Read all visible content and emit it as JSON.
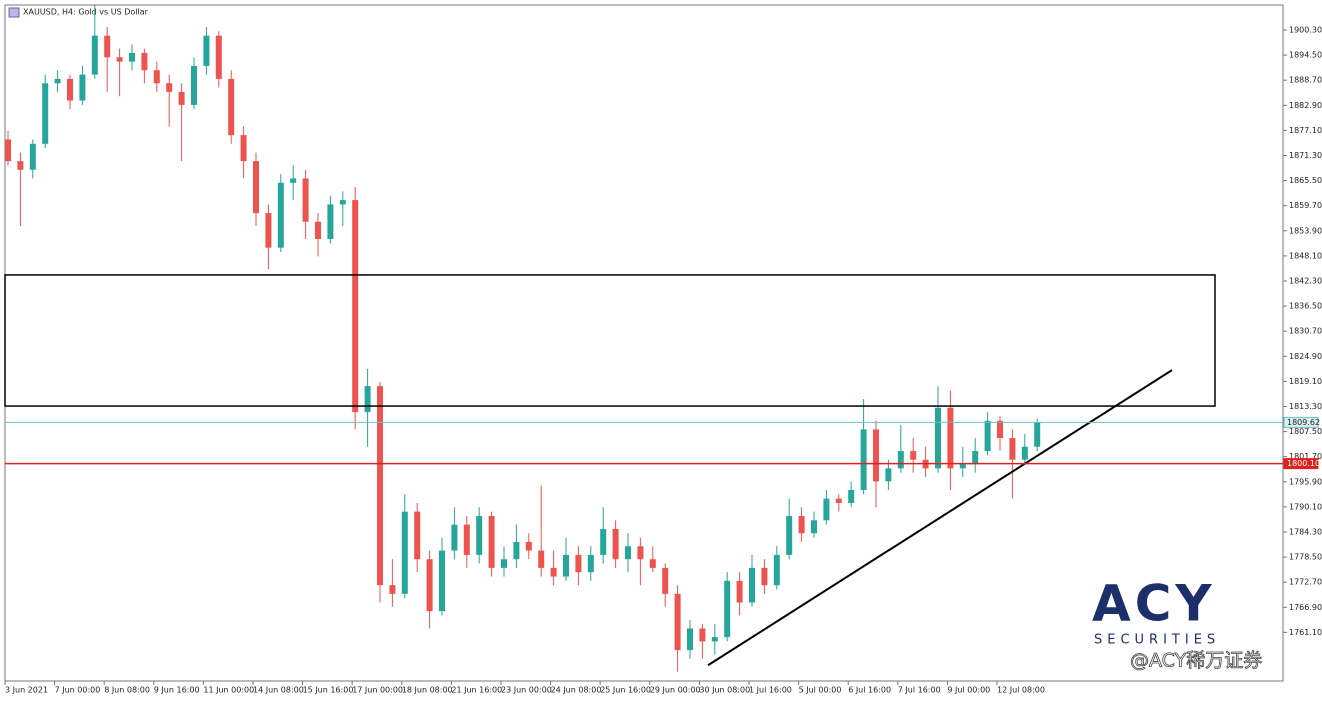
{
  "chart_data": {
    "type": "candlestick",
    "title": "XAUUSD, H4:  Gold vs US Dollar",
    "up_color": "#26a69a",
    "down_color": "#ef5350",
    "ylim": [
      1749.86,
      1906.08
    ],
    "yticks": [
      {
        "value": 1900.3,
        "label": "1900.30"
      },
      {
        "value": 1894.5,
        "label": "1894.50"
      },
      {
        "value": 1888.7,
        "label": "1888.70"
      },
      {
        "value": 1882.9,
        "label": "1882.90"
      },
      {
        "value": 1877.1,
        "label": "1877.10"
      },
      {
        "value": 1871.3,
        "label": "1871.30"
      },
      {
        "value": 1865.5,
        "label": "1865.50"
      },
      {
        "value": 1859.7,
        "label": "1859.70"
      },
      {
        "value": 1853.9,
        "label": "1853.90"
      },
      {
        "value": 1848.1,
        "label": "1848.10"
      },
      {
        "value": 1842.3,
        "label": "1842.30"
      },
      {
        "value": 1836.5,
        "label": "1836.50"
      },
      {
        "value": 1830.7,
        "label": "1830.70"
      },
      {
        "value": 1824.9,
        "label": "1824.90"
      },
      {
        "value": 1819.1,
        "label": "1819.10"
      },
      {
        "value": 1813.3,
        "label": "1813.30"
      },
      {
        "value": 1807.5,
        "label": "1807.50"
      },
      {
        "value": 1801.7,
        "label": "1801.70"
      },
      {
        "value": 1795.9,
        "label": "1795.90"
      },
      {
        "value": 1790.1,
        "label": "1790.10"
      },
      {
        "value": 1784.3,
        "label": "1784.30"
      },
      {
        "value": 1778.5,
        "label": "1778.50"
      },
      {
        "value": 1772.7,
        "label": "1772.70"
      },
      {
        "value": 1766.9,
        "label": "1766.90"
      },
      {
        "value": 1761.1,
        "label": "1761.10"
      }
    ],
    "xticks": [
      {
        "value": 0,
        "label": "3 Jun 2021"
      },
      {
        "value": 4,
        "label": "7 Jun 00:00"
      },
      {
        "value": 8,
        "label": "8 Jun 08:00"
      },
      {
        "value": 12,
        "label": "9 Jun 16:00"
      },
      {
        "value": 16,
        "label": "11 Jun 00:00"
      },
      {
        "value": 20,
        "label": "14 Jun 08:00"
      },
      {
        "value": 24,
        "label": "15 Jun 16:00"
      },
      {
        "value": 28,
        "label": "17 Jun 00:00"
      },
      {
        "value": 32,
        "label": "18 Jun 08:00"
      },
      {
        "value": 36,
        "label": "21 Jun 16:00"
      },
      {
        "value": 40,
        "label": "23 Jun 00:00"
      },
      {
        "value": 44,
        "label": "24 Jun 08:00"
      },
      {
        "value": 48,
        "label": "25 Jun 16:00"
      },
      {
        "value": 52,
        "label": "29 Jun 00:00"
      },
      {
        "value": 56,
        "label": "30 Jun 08:00"
      },
      {
        "value": 60,
        "label": "1 Jul 16:00"
      },
      {
        "value": 64,
        "label": "5 Jul 00:00"
      },
      {
        "value": 68,
        "label": "6 Jul 16:00"
      },
      {
        "value": 72,
        "label": "7 Jul 16:00"
      },
      {
        "value": 76,
        "label": "9 Jul 00:00"
      },
      {
        "value": 80,
        "label": "12 Jul 08:00"
      }
    ],
    "ohlc": [
      [
        1875,
        1877,
        1869,
        1870
      ],
      [
        1870,
        1872,
        1855,
        1868
      ],
      [
        1868,
        1875,
        1866,
        1874
      ],
      [
        1874,
        1890,
        1873,
        1888
      ],
      [
        1888,
        1891,
        1886,
        1889
      ],
      [
        1889,
        1890,
        1882,
        1884
      ],
      [
        1884,
        1892,
        1883,
        1890
      ],
      [
        1890,
        1906,
        1889,
        1899
      ],
      [
        1899,
        1901,
        1886,
        1894
      ],
      [
        1894,
        1896,
        1885,
        1893
      ],
      [
        1893,
        1897,
        1891,
        1895
      ],
      [
        1895,
        1896,
        1888,
        1891
      ],
      [
        1891,
        1893,
        1886,
        1888
      ],
      [
        1888,
        1890,
        1878,
        1886
      ],
      [
        1886,
        1888,
        1870,
        1883
      ],
      [
        1883,
        1894,
        1882,
        1892
      ],
      [
        1892,
        1901,
        1890,
        1899
      ],
      [
        1899,
        1900,
        1887,
        1889
      ],
      [
        1889,
        1891,
        1874,
        1876
      ],
      [
        1876,
        1878,
        1866,
        1870
      ],
      [
        1870,
        1872,
        1855,
        1858
      ],
      [
        1858,
        1860,
        1845,
        1850
      ],
      [
        1850,
        1867,
        1849,
        1865
      ],
      [
        1865,
        1869,
        1861,
        1866
      ],
      [
        1866,
        1868,
        1852,
        1856
      ],
      [
        1856,
        1858,
        1848,
        1852
      ],
      [
        1852,
        1862,
        1851,
        1860
      ],
      [
        1860,
        1863,
        1855,
        1861
      ],
      [
        1861,
        1864,
        1808,
        1812
      ],
      [
        1812,
        1822,
        1804,
        1818
      ],
      [
        1818,
        1819,
        1768,
        1772
      ],
      [
        1772,
        1778,
        1767,
        1770
      ],
      [
        1770,
        1793,
        1769,
        1789
      ],
      [
        1789,
        1791,
        1775,
        1778
      ],
      [
        1778,
        1780,
        1762,
        1766
      ],
      [
        1766,
        1783,
        1765,
        1780
      ],
      [
        1780,
        1790,
        1778,
        1786
      ],
      [
        1786,
        1788,
        1776,
        1779
      ],
      [
        1779,
        1790,
        1777,
        1788
      ],
      [
        1788,
        1789,
        1774,
        1776
      ],
      [
        1776,
        1781,
        1774,
        1778
      ],
      [
        1778,
        1786,
        1776,
        1782
      ],
      [
        1782,
        1784,
        1778,
        1780
      ],
      [
        1780,
        1795,
        1774,
        1776
      ],
      [
        1776,
        1780,
        1772,
        1774
      ],
      [
        1774,
        1783,
        1773,
        1779
      ],
      [
        1779,
        1781,
        1772,
        1775
      ],
      [
        1775,
        1781,
        1773,
        1779
      ],
      [
        1779,
        1790,
        1777,
        1785
      ],
      [
        1785,
        1787,
        1776,
        1778
      ],
      [
        1778,
        1784,
        1775,
        1781
      ],
      [
        1781,
        1783,
        1772,
        1778
      ],
      [
        1778,
        1781,
        1775,
        1776
      ],
      [
        1776,
        1777,
        1767,
        1770
      ],
      [
        1770,
        1772,
        1752,
        1757
      ],
      [
        1757,
        1764,
        1755,
        1762
      ],
      [
        1762,
        1763,
        1755,
        1759
      ],
      [
        1759,
        1763,
        1756,
        1760
      ],
      [
        1760,
        1775,
        1759,
        1773
      ],
      [
        1773,
        1775,
        1765,
        1768
      ],
      [
        1768,
        1779,
        1767,
        1776
      ],
      [
        1776,
        1778,
        1770,
        1772
      ],
      [
        1772,
        1781,
        1771,
        1779
      ],
      [
        1779,
        1792,
        1778,
        1788
      ],
      [
        1788,
        1790,
        1782,
        1784
      ],
      [
        1784,
        1789,
        1783,
        1787
      ],
      [
        1787,
        1794,
        1786,
        1792
      ],
      [
        1792,
        1793,
        1789,
        1791
      ],
      [
        1791,
        1796,
        1790,
        1794
      ],
      [
        1794,
        1815,
        1793,
        1808
      ],
      [
        1808,
        1810,
        1790,
        1796
      ],
      [
        1796,
        1801,
        1794,
        1799
      ],
      [
        1799,
        1809,
        1798,
        1803
      ],
      [
        1803,
        1806,
        1798,
        1801
      ],
      [
        1801,
        1804,
        1797,
        1799
      ],
      [
        1799,
        1818,
        1798,
        1813
      ],
      [
        1813,
        1817,
        1794,
        1799
      ],
      [
        1799,
        1804,
        1797,
        1800
      ],
      [
        1800,
        1806,
        1798,
        1803
      ],
      [
        1803,
        1812,
        1802,
        1810
      ],
      [
        1810,
        1811,
        1803,
        1806
      ],
      [
        1806,
        1808,
        1792,
        1801
      ],
      [
        1801,
        1807,
        1800,
        1804
      ],
      [
        1804,
        1810.5,
        1803,
        1809.62
      ]
    ],
    "price_lines": [
      {
        "value": 1809.62,
        "label": "1809.62",
        "color": "#6cc0c8"
      },
      {
        "value": 1800.1,
        "label": "1800.10",
        "color": "#e02020"
      }
    ],
    "zone": {
      "top": 1843.7,
      "bottom": 1813.4
    },
    "trendline": {
      "start": 1753.5,
      "end": 1821.7
    },
    "watermark": {
      "logo": "ACY",
      "sub": "SECURITIES",
      "caption": "@ACY稀万证券"
    }
  }
}
